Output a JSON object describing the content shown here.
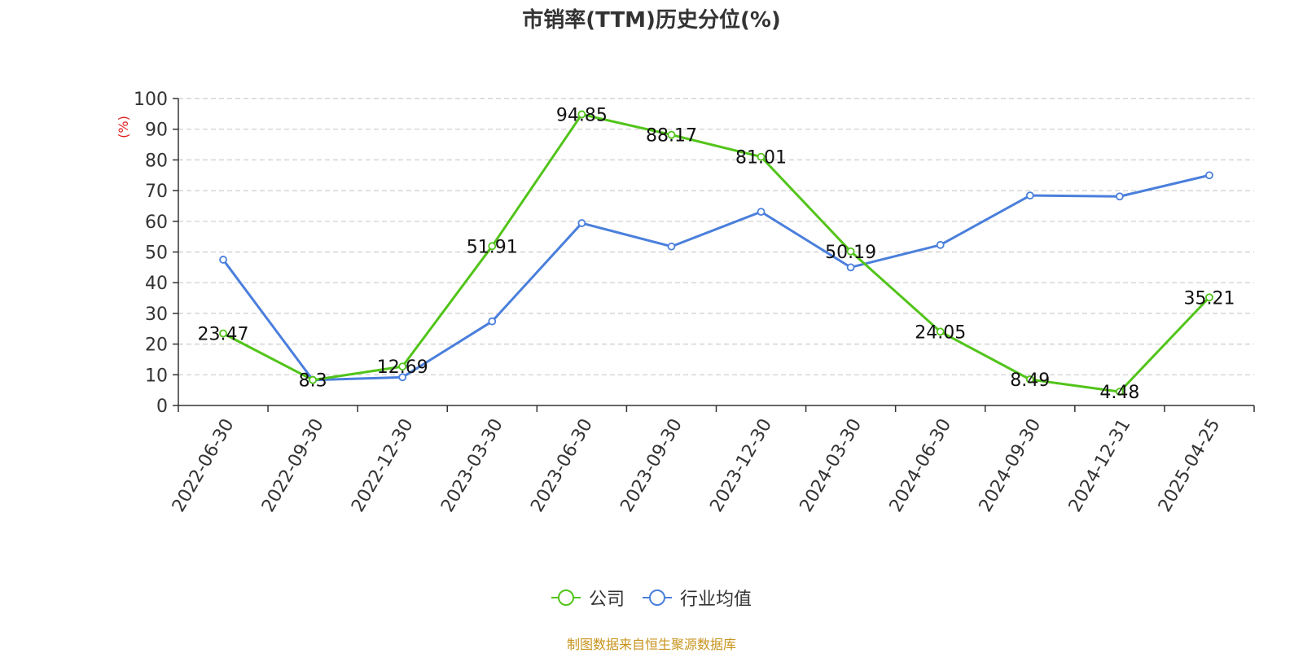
{
  "source_note": "制图数据来自恒生聚源数据库",
  "chart_data": {
    "type": "line",
    "title": "市销率(TTM)历史分位(%)",
    "ylabel": "(%)",
    "ylim": [
      0,
      100
    ],
    "yticks": [
      0,
      10,
      20,
      30,
      40,
      50,
      60,
      70,
      80,
      90,
      100
    ],
    "grid": true,
    "legend_position": "bottom",
    "categories": [
      "2022-06-30",
      "2022-09-30",
      "2022-12-30",
      "2023-03-30",
      "2023-06-30",
      "2023-09-30",
      "2023-12-30",
      "2024-03-30",
      "2024-06-30",
      "2024-09-30",
      "2024-12-31",
      "2025-04-25"
    ],
    "series": [
      {
        "name": "公司",
        "color": "#52c41a",
        "values": [
          23.47,
          8.3,
          12.69,
          51.91,
          94.85,
          88.17,
          81.01,
          50.19,
          24.05,
          8.49,
          4.48,
          35.21
        ],
        "data_labels": [
          "23.47",
          "8.3",
          "12.69",
          "51.91",
          "94.85",
          "88.17",
          "81.01",
          "50.19",
          "24.05",
          "8.49",
          "4.48",
          "35.21"
        ]
      },
      {
        "name": "行业均值",
        "color": "#4a7fdc",
        "values": [
          47.5,
          8.3,
          9.2,
          27.4,
          59.4,
          51.8,
          63.1,
          45.0,
          52.3,
          68.4,
          68.1,
          75.0
        ]
      }
    ]
  }
}
